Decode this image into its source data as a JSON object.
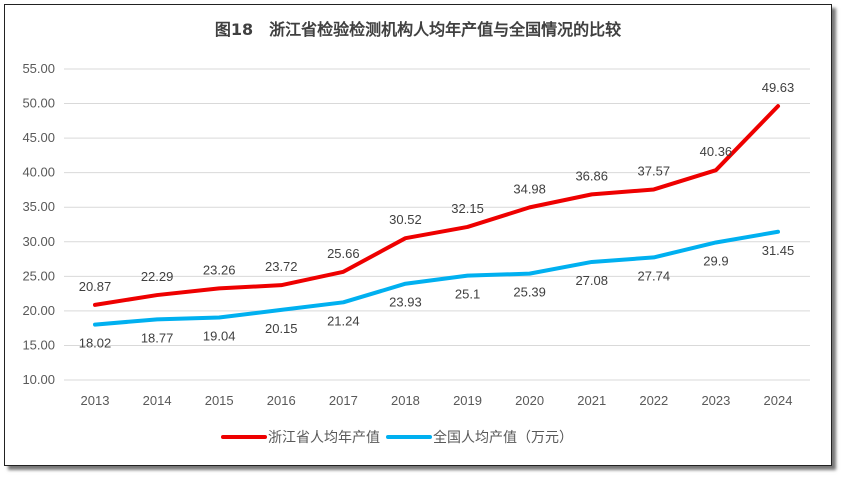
{
  "chart_data": {
    "type": "line",
    "title": "图18　浙江省检验检测机构人均年产值与全国情况的比较",
    "xlabel": "",
    "ylabel": "",
    "categories": [
      "2013",
      "2014",
      "2015",
      "2016",
      "2017",
      "2018",
      "2019",
      "2020",
      "2021",
      "2022",
      "2023",
      "2024"
    ],
    "ylim": [
      10,
      55
    ],
    "yticks": [
      "10.00",
      "15.00",
      "20.00",
      "25.00",
      "30.00",
      "35.00",
      "40.00",
      "45.00",
      "50.00",
      "55.00"
    ],
    "grid": true,
    "legend_position": "bottom",
    "series": [
      {
        "name": "浙江省人均年产值",
        "color": "#ee0000",
        "values": [
          20.87,
          22.29,
          23.26,
          23.72,
          25.66,
          30.52,
          32.15,
          34.98,
          36.86,
          37.57,
          40.36,
          49.63
        ],
        "labels": [
          "20.87",
          "22.29",
          "23.26",
          "23.72",
          "25.66",
          "30.52",
          "32.15",
          "34.98",
          "36.86",
          "37.57",
          "40.36",
          "49.63"
        ]
      },
      {
        "name": "全国人均产值（万元）",
        "color": "#00b0f0",
        "values": [
          18.02,
          18.77,
          19.04,
          20.15,
          21.24,
          23.93,
          25.1,
          25.39,
          27.08,
          27.74,
          29.9,
          31.45
        ],
        "labels": [
          "18.02",
          "18.77",
          "19.04",
          "20.15",
          "21.24",
          "23.93",
          "25.1",
          "25.39",
          "27.08",
          "27.74",
          "29.9",
          "31.45"
        ]
      }
    ]
  }
}
